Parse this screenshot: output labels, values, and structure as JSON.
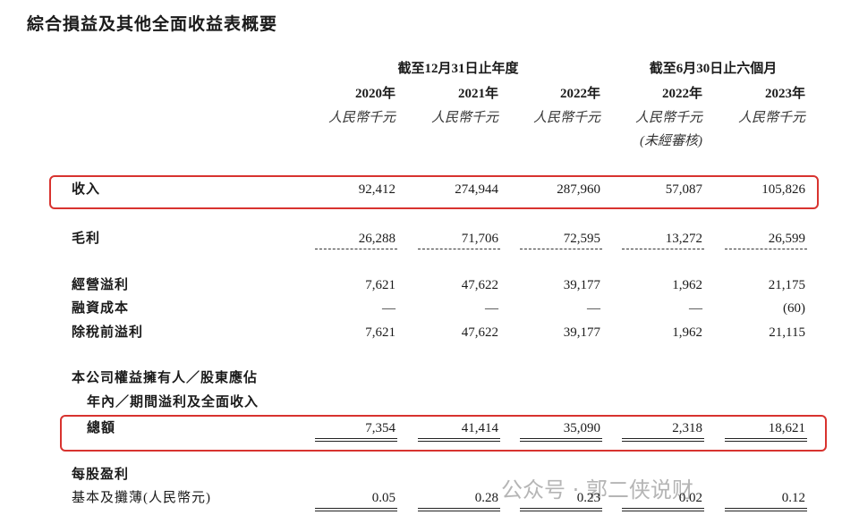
{
  "title": "綜合損益及其他全面收益表概要",
  "header": {
    "groups": [
      "截至12月31日止年度",
      "截至6月30日止六個月"
    ],
    "years": [
      "2020年",
      "2021年",
      "2022年",
      "2022年",
      "2023年"
    ],
    "units": [
      "人民幣千元",
      "人民幣千元",
      "人民幣千元",
      "人民幣千元",
      "人民幣千元"
    ],
    "note": "(未經審核)"
  },
  "rows": [
    {
      "label": "收入",
      "values": [
        "92,412",
        "274,944",
        "287,960",
        "57,087",
        "105,826"
      ]
    },
    {
      "label": "毛利",
      "values": [
        "26,288",
        "71,706",
        "72,595",
        "13,272",
        "26,599"
      ]
    },
    {
      "label": "經營溢利",
      "values": [
        "7,621",
        "47,622",
        "39,177",
        "1,962",
        "21,175"
      ]
    },
    {
      "label": "融資成本",
      "values": [
        "—",
        "—",
        "—",
        "—",
        "(60)"
      ]
    },
    {
      "label": "除稅前溢利",
      "values": [
        "7,621",
        "47,622",
        "39,177",
        "1,962",
        "21,115"
      ]
    },
    {
      "label": "本公司權益擁有人／股東應佔"
    },
    {
      "label": "年內／期間溢利及全面收入"
    },
    {
      "label": "總額",
      "values": [
        "7,354",
        "41,414",
        "35,090",
        "2,318",
        "18,621"
      ]
    },
    {
      "label": "每股盈利"
    },
    {
      "label": "基本及攤薄(人民幣元)",
      "values": [
        "0.05",
        "0.28",
        "0.23",
        "0.02",
        "0.12"
      ]
    }
  ],
  "watermark": "公众号 · 郭二侠说财"
}
